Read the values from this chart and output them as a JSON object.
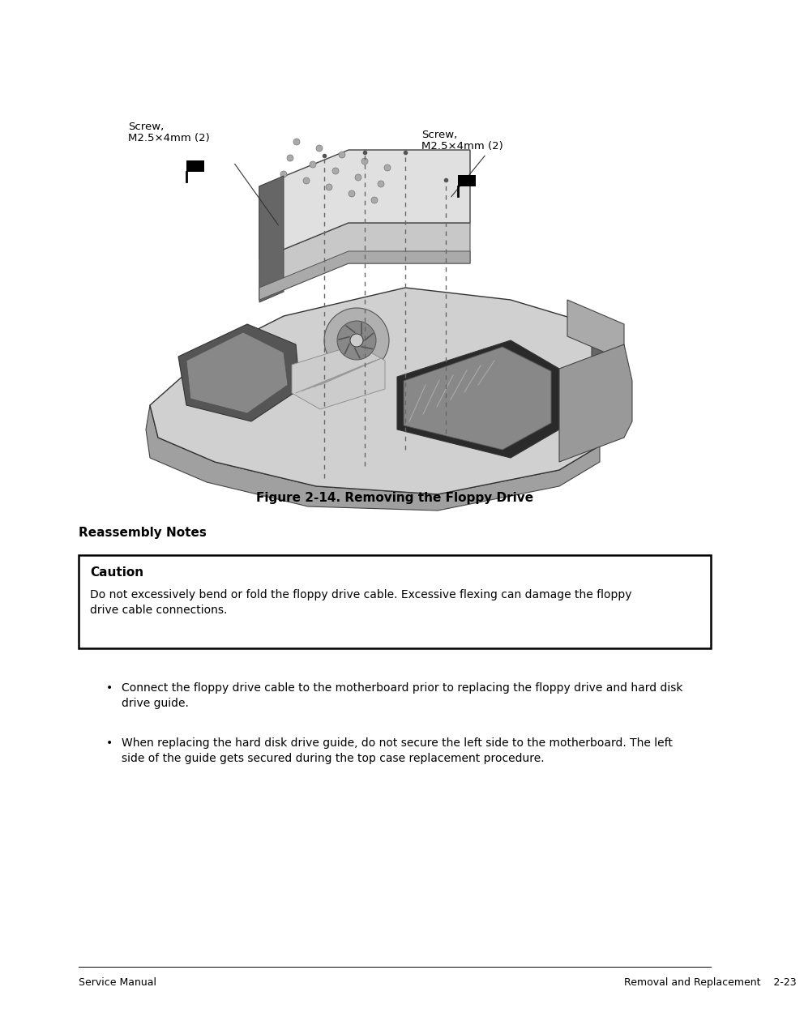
{
  "bg_color": "#ffffff",
  "figure_caption": "Figure 2-14. Removing the Floppy Drive",
  "figure_caption_fontsize": 11,
  "section_title": "Reassembly Notes",
  "section_title_fontsize": 11,
  "caution_title": "Caution",
  "caution_title_fontsize": 11,
  "caution_line1": "Do not excessively bend or fold the floppy drive cable. Excessive flexing can damage the floppy",
  "caution_line2": "drive cable connections.",
  "caution_text_fontsize": 10,
  "bullet1_line1": "Connect the floppy drive cable to the motherboard prior to replacing the floppy drive and hard disk",
  "bullet1_line2": "drive guide.",
  "bullet2_line1": "When replacing the hard disk drive guide, do not secure the left side to the motherboard. The left",
  "bullet2_line2": "side of the guide gets secured during the top case replacement procedure.",
  "bullet_fontsize": 10,
  "footer_left": "Service Manual",
  "footer_right": "Removal and Replacement",
  "footer_page": "2-23",
  "footer_fontsize": 9,
  "label_left_line1": "Screw,",
  "label_left_line2": "M2.5×4mm (2)",
  "label_right_line1": "Screw,",
  "label_right_line2": "M2.5×4mm (2)",
  "label_fontsize": 9.5
}
